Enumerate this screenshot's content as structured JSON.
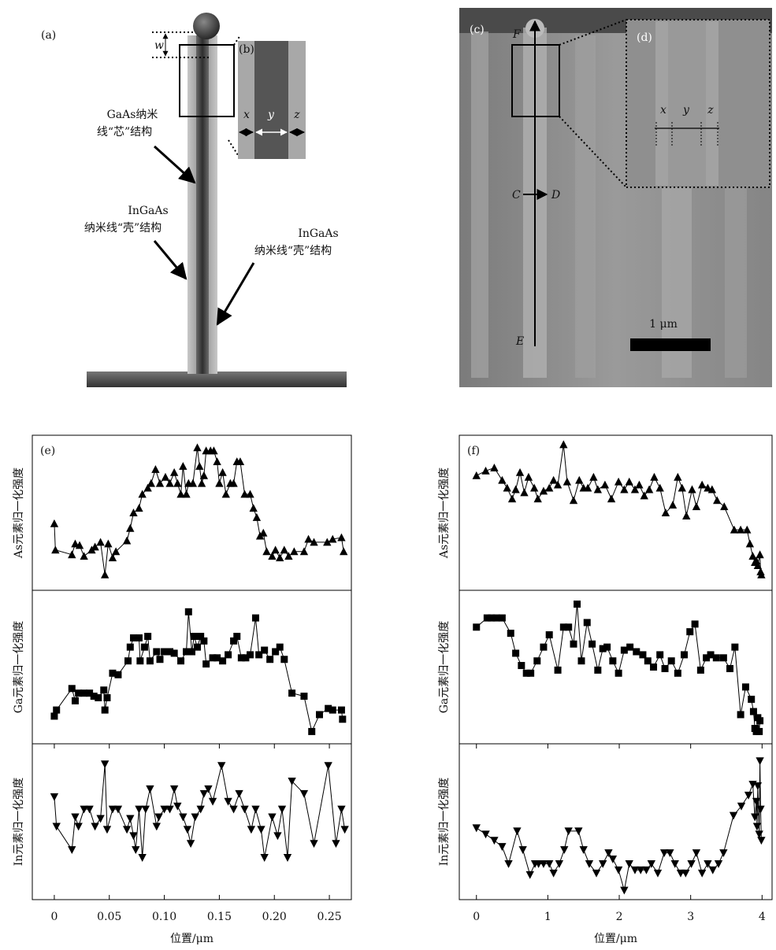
{
  "figure": {
    "a": {
      "label": "(a)",
      "w": "w",
      "inset_label": "(b)",
      "x": "x",
      "y": "y",
      "z": "z",
      "core_label": [
        "GaAs纳米",
        "线“芯”结构"
      ],
      "shell_label_1": [
        "InGaAs",
        "纳米线“壳”结构"
      ],
      "shell_label_2": [
        "InGaAs",
        "纳米线“壳”结构"
      ]
    },
    "c": {
      "label": "(c)",
      "inset_label": "(d)",
      "F": "F",
      "C": "C",
      "D": "D",
      "E": "E",
      "scale_bar": "1 μm",
      "x": "x",
      "y": "y",
      "z": "z"
    }
  },
  "chart_data": [
    {
      "type": "line",
      "panel_label": "(e)",
      "ylabel": "As元素归一化强度",
      "marker": "triangle-up",
      "color": "#000000",
      "xlim": [
        -0.02,
        0.27
      ],
      "ylim": [
        0,
        1
      ],
      "x": [
        0.0,
        0.001,
        0.016,
        0.019,
        0.023,
        0.027,
        0.034,
        0.037,
        0.042,
        0.046,
        0.049,
        0.053,
        0.056,
        0.066,
        0.069,
        0.072,
        0.077,
        0.08,
        0.085,
        0.088,
        0.092,
        0.096,
        0.101,
        0.105,
        0.109,
        0.112,
        0.115,
        0.117,
        0.12,
        0.122,
        0.126,
        0.13,
        0.132,
        0.134,
        0.136,
        0.138,
        0.142,
        0.145,
        0.148,
        0.15,
        0.153,
        0.156,
        0.16,
        0.163,
        0.166,
        0.169,
        0.173,
        0.178,
        0.181,
        0.184,
        0.187,
        0.19,
        0.193,
        0.198,
        0.201,
        0.205,
        0.209,
        0.213,
        0.218,
        0.227,
        0.231,
        0.236,
        0.248,
        0.253,
        0.261,
        0.263
      ],
      "values": [
        0.43,
        0.26,
        0.23,
        0.3,
        0.29,
        0.22,
        0.26,
        0.28,
        0.31,
        0.1,
        0.3,
        0.21,
        0.25,
        0.32,
        0.4,
        0.5,
        0.53,
        0.62,
        0.66,
        0.69,
        0.78,
        0.69,
        0.73,
        0.69,
        0.76,
        0.69,
        0.62,
        0.8,
        0.62,
        0.69,
        0.69,
        0.92,
        0.8,
        0.69,
        0.74,
        0.9,
        0.9,
        0.9,
        0.83,
        0.69,
        0.76,
        0.62,
        0.69,
        0.69,
        0.83,
        0.83,
        0.62,
        0.62,
        0.53,
        0.47,
        0.35,
        0.37,
        0.25,
        0.22,
        0.26,
        0.21,
        0.26,
        0.22,
        0.25,
        0.25,
        0.33,
        0.31,
        0.31,
        0.33,
        0.34,
        0.25
      ]
    },
    {
      "type": "line",
      "ylabel": "Ga元素归一化强度",
      "marker": "square",
      "color": "#000000",
      "xlim": [
        -0.02,
        0.27
      ],
      "ylim": [
        0,
        1
      ],
      "x": [
        0,
        0.002,
        0.016,
        0.019,
        0.022,
        0.027,
        0.032,
        0.036,
        0.04,
        0.045,
        0.046,
        0.048,
        0.053,
        0.058,
        0.067,
        0.069,
        0.072,
        0.077,
        0.078,
        0.082,
        0.085,
        0.087,
        0.093,
        0.096,
        0.1,
        0.105,
        0.109,
        0.115,
        0.12,
        0.122,
        0.125,
        0.127,
        0.13,
        0.133,
        0.136,
        0.138,
        0.144,
        0.148,
        0.153,
        0.158,
        0.163,
        0.166,
        0.17,
        0.174,
        0.178,
        0.183,
        0.186,
        0.191,
        0.196,
        0.201,
        0.205,
        0.209,
        0.216,
        0.227,
        0.234,
        0.241,
        0.249,
        0.253,
        0.261,
        0.262
      ],
      "values": [
        0.18,
        0.22,
        0.36,
        0.28,
        0.33,
        0.33,
        0.33,
        0.31,
        0.3,
        0.35,
        0.22,
        0.3,
        0.46,
        0.45,
        0.54,
        0.63,
        0.69,
        0.69,
        0.54,
        0.63,
        0.7,
        0.54,
        0.6,
        0.55,
        0.6,
        0.6,
        0.59,
        0.54,
        0.6,
        0.86,
        0.6,
        0.7,
        0.63,
        0.7,
        0.67,
        0.52,
        0.56,
        0.56,
        0.54,
        0.58,
        0.67,
        0.7,
        0.56,
        0.56,
        0.58,
        0.82,
        0.58,
        0.61,
        0.55,
        0.6,
        0.63,
        0.55,
        0.33,
        0.31,
        0.08,
        0.19,
        0.23,
        0.22,
        0.22,
        0.16
      ]
    },
    {
      "type": "line",
      "ylabel": "In元素归一化强度",
      "marker": "triangle-down",
      "color": "#000000",
      "xlim": [
        -0.02,
        0.27
      ],
      "ylim": [
        0,
        1
      ],
      "xlabel": "位置/μm",
      "xticks": [
        0,
        0.05,
        {
          "value": 0.1,
          "label": "0.10"
        },
        0.15,
        {
          "value": 0.2,
          "label": "0.20"
        },
        0.25
      ],
      "x": [
        0,
        0.002,
        0.016,
        0.019,
        0.022,
        0.027,
        0.032,
        0.037,
        0.042,
        0.046,
        0.048,
        0.053,
        0.058,
        0.066,
        0.069,
        0.072,
        0.074,
        0.077,
        0.08,
        0.083,
        0.087,
        0.093,
        0.095,
        0.1,
        0.105,
        0.109,
        0.112,
        0.117,
        0.121,
        0.124,
        0.128,
        0.133,
        0.136,
        0.14,
        0.144,
        0.152,
        0.158,
        0.163,
        0.168,
        0.173,
        0.179,
        0.183,
        0.188,
        0.191,
        0.198,
        0.203,
        0.207,
        0.212,
        0.216,
        0.227,
        0.236,
        0.249,
        0.256,
        0.261,
        0.264
      ],
      "values": [
        0.66,
        0.47,
        0.32,
        0.53,
        0.47,
        0.58,
        0.58,
        0.47,
        0.52,
        0.87,
        0.45,
        0.58,
        0.58,
        0.45,
        0.52,
        0.41,
        0.32,
        0.58,
        0.27,
        0.58,
        0.71,
        0.47,
        0.53,
        0.58,
        0.58,
        0.71,
        0.6,
        0.53,
        0.45,
        0.36,
        0.53,
        0.58,
        0.68,
        0.71,
        0.63,
        0.86,
        0.63,
        0.58,
        0.68,
        0.58,
        0.45,
        0.58,
        0.45,
        0.27,
        0.53,
        0.41,
        0.58,
        0.27,
        0.76,
        0.68,
        0.36,
        0.86,
        0.36,
        0.58,
        0.45
      ]
    },
    {
      "type": "line",
      "panel_label": "(f)",
      "ylabel": "As元素归一化强度",
      "marker": "triangle-up",
      "color": "#000000",
      "xlim": [
        -0.24,
        4.14
      ],
      "ylim": [
        0,
        1
      ],
      "x": [
        0,
        0.13,
        0.25,
        0.36,
        0.43,
        0.5,
        0.55,
        0.61,
        0.67,
        0.73,
        0.81,
        0.86,
        0.94,
        1.02,
        1.08,
        1.14,
        1.22,
        1.27,
        1.36,
        1.44,
        1.5,
        1.56,
        1.64,
        1.7,
        1.8,
        1.89,
        1.99,
        2.07,
        2.14,
        2.22,
        2.28,
        2.35,
        2.42,
        2.49,
        2.57,
        2.65,
        2.75,
        2.82,
        2.88,
        2.94,
        3.02,
        3.08,
        3.16,
        3.24,
        3.3,
        3.37,
        3.47,
        3.61,
        3.7,
        3.79,
        3.83,
        3.87,
        3.9,
        3.92,
        3.94,
        3.97,
        3.98,
        3.99
      ],
      "values": [
        0.74,
        0.77,
        0.79,
        0.71,
        0.66,
        0.59,
        0.65,
        0.76,
        0.63,
        0.73,
        0.66,
        0.59,
        0.64,
        0.66,
        0.71,
        0.68,
        0.94,
        0.7,
        0.58,
        0.71,
        0.66,
        0.66,
        0.73,
        0.65,
        0.68,
        0.59,
        0.7,
        0.65,
        0.7,
        0.65,
        0.68,
        0.61,
        0.65,
        0.73,
        0.66,
        0.5,
        0.55,
        0.73,
        0.66,
        0.48,
        0.65,
        0.54,
        0.68,
        0.66,
        0.65,
        0.58,
        0.54,
        0.39,
        0.39,
        0.39,
        0.3,
        0.22,
        0.18,
        0.19,
        0.16,
        0.23,
        0.12,
        0.1
      ]
    },
    {
      "type": "line",
      "ylabel": "Ga元素归一化强度",
      "marker": "square",
      "color": "#000000",
      "xlim": [
        -0.24,
        4.14
      ],
      "ylim": [
        0,
        1
      ],
      "x": [
        0,
        0.15,
        0.21,
        0.28,
        0.36,
        0.48,
        0.55,
        0.63,
        0.7,
        0.76,
        0.85,
        0.94,
        1.02,
        1.14,
        1.22,
        1.29,
        1.36,
        1.41,
        1.47,
        1.55,
        1.62,
        1.7,
        1.77,
        1.83,
        1.91,
        1.99,
        2.07,
        2.15,
        2.24,
        2.33,
        2.4,
        2.48,
        2.57,
        2.64,
        2.73,
        2.82,
        2.91,
        2.99,
        3.06,
        3.14,
        3.22,
        3.28,
        3.36,
        3.46,
        3.55,
        3.62,
        3.7,
        3.77,
        3.85,
        3.88,
        3.9,
        3.92,
        3.94,
        3.96,
        3.97
      ],
      "values": [
        0.76,
        0.82,
        0.82,
        0.82,
        0.82,
        0.72,
        0.59,
        0.51,
        0.46,
        0.46,
        0.54,
        0.63,
        0.71,
        0.48,
        0.76,
        0.76,
        0.65,
        0.91,
        0.54,
        0.79,
        0.65,
        0.48,
        0.62,
        0.63,
        0.54,
        0.46,
        0.61,
        0.63,
        0.6,
        0.58,
        0.54,
        0.5,
        0.58,
        0.49,
        0.54,
        0.46,
        0.58,
        0.73,
        0.78,
        0.48,
        0.56,
        0.58,
        0.56,
        0.56,
        0.49,
        0.63,
        0.19,
        0.37,
        0.29,
        0.21,
        0.1,
        0.08,
        0.17,
        0.08,
        0.15
      ]
    },
    {
      "type": "line",
      "ylabel": "In元素归一化强度",
      "marker": "triangle-down",
      "color": "#000000",
      "xlim": [
        -0.24,
        4.14
      ],
      "ylim": [
        0,
        1
      ],
      "xlabel": "位置/μm",
      "xticks": [
        0,
        1,
        2,
        3,
        4
      ],
      "x": [
        0,
        0.13,
        0.25,
        0.36,
        0.45,
        0.57,
        0.65,
        0.75,
        0.82,
        0.87,
        0.94,
        1.02,
        1.08,
        1.16,
        1.23,
        1.29,
        1.43,
        1.5,
        1.58,
        1.68,
        1.77,
        1.85,
        1.91,
        1.99,
        2.07,
        2.14,
        2.22,
        2.3,
        2.38,
        2.45,
        2.54,
        2.63,
        2.71,
        2.78,
        2.86,
        2.93,
        3.01,
        3.08,
        3.16,
        3.24,
        3.31,
        3.39,
        3.46,
        3.6,
        3.71,
        3.81,
        3.87,
        3.9,
        3.92,
        3.93,
        3.94,
        3.96,
        3.97,
        3.98,
        3.99
      ],
      "values": [
        0.46,
        0.42,
        0.38,
        0.34,
        0.23,
        0.44,
        0.32,
        0.16,
        0.23,
        0.23,
        0.23,
        0.23,
        0.17,
        0.23,
        0.32,
        0.44,
        0.44,
        0.32,
        0.23,
        0.17,
        0.23,
        0.3,
        0.26,
        0.19,
        0.06,
        0.23,
        0.19,
        0.19,
        0.19,
        0.23,
        0.17,
        0.3,
        0.3,
        0.23,
        0.17,
        0.17,
        0.23,
        0.3,
        0.17,
        0.23,
        0.19,
        0.23,
        0.3,
        0.54,
        0.6,
        0.67,
        0.74,
        0.53,
        0.63,
        0.47,
        0.73,
        0.42,
        0.89,
        0.58,
        0.38
      ]
    }
  ]
}
